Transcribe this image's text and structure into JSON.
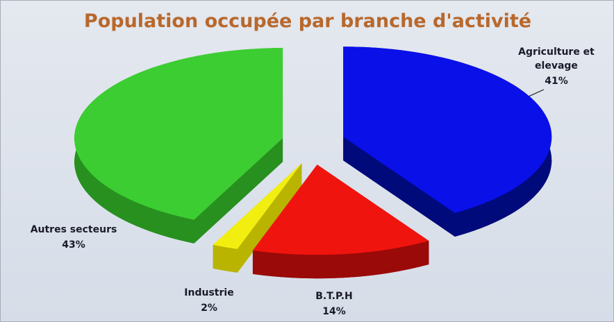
{
  "chart_data": {
    "type": "pie",
    "title": "Population occupée par branche d'activité",
    "categories": [
      "Agriculture et elevage",
      "B.T.P.H",
      "Industrie",
      "Autres secteurs"
    ],
    "values": [
      41,
      14,
      2,
      43
    ],
    "value_labels": [
      "41%",
      "14%",
      "2%",
      "43%"
    ],
    "colors": [
      "#0a10e8",
      "#f0140f",
      "#f2ee10",
      "#3ccd32"
    ],
    "side_colors": [
      "#000a7a",
      "#9a0a08",
      "#b8b400",
      "#27901f"
    ]
  }
}
